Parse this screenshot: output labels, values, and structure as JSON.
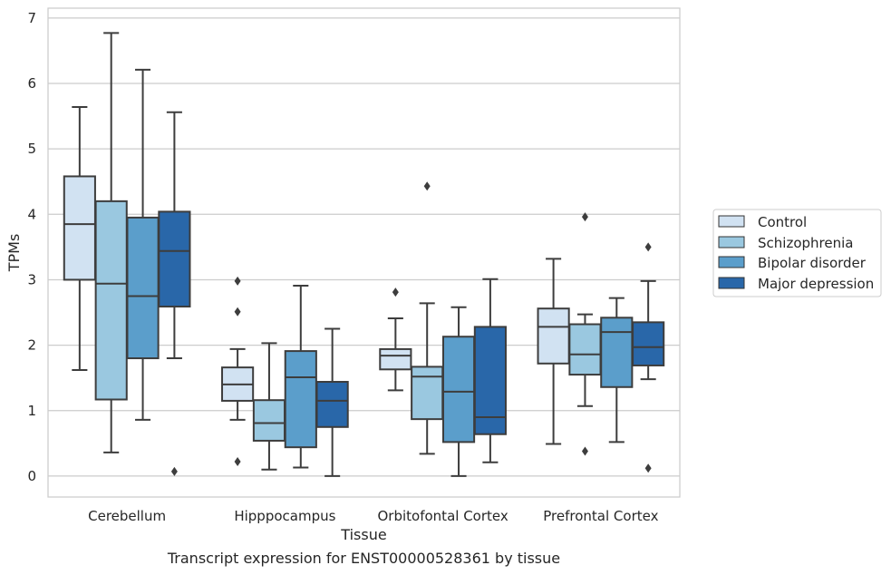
{
  "chart_data": {
    "type": "box",
    "caption": "Transcript expression for ENST00000528361 by tissue",
    "xlabel": "Tissue",
    "ylabel": "TPMs",
    "ylim": [
      -0.32,
      7.15
    ],
    "yticks": [
      0,
      1,
      2,
      3,
      4,
      5,
      6,
      7
    ],
    "grid": true,
    "legend_position": "right",
    "categories": [
      "Cerebellum",
      "Hipppocampus",
      "Orbitofontal Cortex",
      "Prefrontal Cortex"
    ],
    "series": [
      {
        "name": "Control",
        "color": "#d1e2f2",
        "boxes": [
          {
            "whislo": 1.62,
            "q1": 3.0,
            "med": 3.85,
            "q3": 4.58,
            "whishi": 5.64,
            "fliers": []
          },
          {
            "whislo": 0.86,
            "q1": 1.15,
            "med": 1.4,
            "q3": 1.66,
            "whishi": 1.94,
            "fliers": [
              2.98,
              2.51,
              0.22
            ]
          },
          {
            "whislo": 1.31,
            "q1": 1.63,
            "med": 1.84,
            "q3": 1.94,
            "whishi": 2.41,
            "fliers": [
              2.81
            ]
          },
          {
            "whislo": 0.49,
            "q1": 1.72,
            "med": 2.28,
            "q3": 2.56,
            "whishi": 3.32,
            "fliers": []
          }
        ]
      },
      {
        "name": "Schizophrenia",
        "color": "#9ac8e0",
        "boxes": [
          {
            "whislo": 0.36,
            "q1": 1.17,
            "med": 2.94,
            "q3": 4.2,
            "whishi": 6.77,
            "fliers": []
          },
          {
            "whislo": 0.1,
            "q1": 0.54,
            "med": 0.81,
            "q3": 1.16,
            "whishi": 2.03,
            "fliers": []
          },
          {
            "whislo": 0.34,
            "q1": 0.87,
            "med": 1.52,
            "q3": 1.67,
            "whishi": 2.64,
            "fliers": [
              4.43
            ]
          },
          {
            "whislo": 1.07,
            "q1": 1.55,
            "med": 1.86,
            "q3": 2.32,
            "whishi": 2.47,
            "fliers": [
              3.96,
              0.38
            ]
          }
        ]
      },
      {
        "name": "Bipolar disorder",
        "color": "#5b9ecb",
        "boxes": [
          {
            "whislo": 0.86,
            "q1": 1.8,
            "med": 2.75,
            "q3": 3.95,
            "whishi": 6.21,
            "fliers": []
          },
          {
            "whislo": 0.13,
            "q1": 0.44,
            "med": 1.51,
            "q3": 1.91,
            "whishi": 2.91,
            "fliers": []
          },
          {
            "whislo": 0.0,
            "q1": 0.52,
            "med": 1.29,
            "q3": 2.13,
            "whishi": 2.58,
            "fliers": []
          },
          {
            "whislo": 0.52,
            "q1": 1.36,
            "med": 2.2,
            "q3": 2.42,
            "whishi": 2.72,
            "fliers": []
          }
        ]
      },
      {
        "name": "Major depression",
        "color": "#2967a9",
        "boxes": [
          {
            "whislo": 1.8,
            "q1": 2.59,
            "med": 3.44,
            "q3": 4.04,
            "whishi": 5.56,
            "fliers": [
              0.07
            ]
          },
          {
            "whislo": 0.0,
            "q1": 0.75,
            "med": 1.15,
            "q3": 1.44,
            "whishi": 2.25,
            "fliers": []
          },
          {
            "whislo": 0.21,
            "q1": 0.64,
            "med": 0.9,
            "q3": 2.28,
            "whishi": 3.01,
            "fliers": []
          },
          {
            "whislo": 1.48,
            "q1": 1.69,
            "med": 1.97,
            "q3": 2.35,
            "whishi": 2.98,
            "fliers": [
              3.5,
              0.12
            ]
          }
        ]
      }
    ]
  }
}
